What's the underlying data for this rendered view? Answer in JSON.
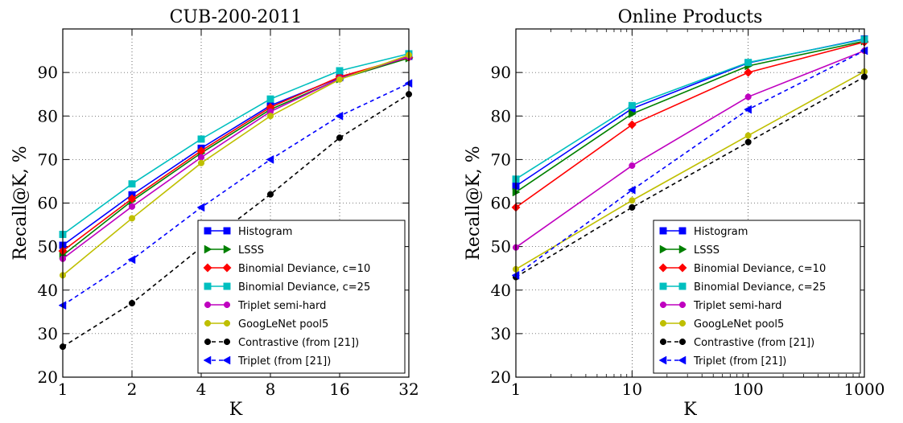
{
  "chart_data": [
    {
      "type": "line",
      "title": "CUB-200-2011",
      "xlabel": "K",
      "ylabel": "Recall@K, %",
      "x_scale": "log2",
      "xlim": [
        1,
        32
      ],
      "ylim": [
        20,
        100
      ],
      "x": [
        1,
        2,
        4,
        8,
        16,
        32
      ],
      "x_tick_labels": [
        "1",
        "2",
        "4",
        "8",
        "16",
        "32"
      ],
      "y_ticks": [
        20,
        30,
        40,
        50,
        60,
        70,
        80,
        90
      ],
      "y_tick_labels": [
        "20",
        "30",
        "40",
        "50",
        "60",
        "70",
        "80",
        "90"
      ],
      "grid": true,
      "legend_position": "lower-right",
      "series": [
        {
          "name": "Histogram",
          "values": [
            50.3,
            61.9,
            72.6,
            82.4,
            88.8,
            93.7
          ],
          "color": "#0000ff",
          "marker": "square",
          "dash": "solid"
        },
        {
          "name": "LSSS",
          "values": [
            48.0,
            60.5,
            71.5,
            81.5,
            88.5,
            93.3
          ],
          "color": "#008000",
          "marker": "arrow-right",
          "dash": "solid"
        },
        {
          "name": "Binomial Deviance, c=10",
          "values": [
            49.0,
            61.0,
            72.0,
            82.0,
            89.0,
            93.5
          ],
          "color": "#ff0000",
          "marker": "diamond",
          "dash": "solid"
        },
        {
          "name": "Binomial Deviance, c=25",
          "values": [
            52.8,
            64.4,
            74.7,
            83.9,
            90.4,
            94.3
          ],
          "color": "#00bfbf",
          "marker": "square",
          "dash": "solid"
        },
        {
          "name": "Triplet semi-hard",
          "values": [
            47.2,
            59.2,
            70.5,
            81.0,
            88.6,
            93.6
          ],
          "color": "#bf00bf",
          "marker": "circle",
          "dash": "solid"
        },
        {
          "name": "GoogLeNet pool5",
          "values": [
            43.4,
            56.5,
            69.2,
            80.0,
            88.4,
            94.0
          ],
          "color": "#bfbf00",
          "marker": "circle",
          "dash": "solid"
        },
        {
          "name": "Contrastive (from [21])",
          "values": [
            27.0,
            37.0,
            49.8,
            62.0,
            75.0,
            85.0
          ],
          "color": "#000000",
          "marker": "circle",
          "dash": "dashed"
        },
        {
          "name": "Triplet (from [21])",
          "values": [
            36.5,
            47.0,
            59.0,
            70.0,
            80.0,
            87.5
          ],
          "color": "#0000ff",
          "marker": "arrow-left",
          "dash": "dashed"
        }
      ]
    },
    {
      "type": "line",
      "title": "Online Products",
      "xlabel": "K",
      "ylabel": "Recall@K, %",
      "x_scale": "log10",
      "xlim": [
        1,
        1000
      ],
      "ylim": [
        20,
        100
      ],
      "x": [
        1,
        10,
        100,
        1000
      ],
      "x_tick_labels": [
        "1",
        "10",
        "100",
        "1000"
      ],
      "y_ticks": [
        20,
        30,
        40,
        50,
        60,
        70,
        80,
        90
      ],
      "y_tick_labels": [
        "20",
        "30",
        "40",
        "50",
        "60",
        "70",
        "80",
        "90"
      ],
      "grid": true,
      "legend_position": "lower-right",
      "series": [
        {
          "name": "Histogram",
          "values": [
            63.9,
            81.7,
            92.2,
            97.7
          ],
          "color": "#0000ff",
          "marker": "square",
          "dash": "solid"
        },
        {
          "name": "LSSS",
          "values": [
            62.5,
            80.5,
            91.5,
            97.2
          ],
          "color": "#008000",
          "marker": "arrow-right",
          "dash": "solid"
        },
        {
          "name": "Binomial Deviance, c=10",
          "values": [
            59.0,
            78.0,
            90.0,
            97.0
          ],
          "color": "#ff0000",
          "marker": "diamond",
          "dash": "solid"
        },
        {
          "name": "Binomial Deviance, c=25",
          "values": [
            65.5,
            82.4,
            92.3,
            97.6
          ],
          "color": "#00bfbf",
          "marker": "square",
          "dash": "solid"
        },
        {
          "name": "Triplet semi-hard",
          "values": [
            49.8,
            68.6,
            84.4,
            95.0
          ],
          "color": "#bf00bf",
          "marker": "circle",
          "dash": "solid"
        },
        {
          "name": "GoogLeNet pool5",
          "values": [
            44.8,
            60.6,
            75.5,
            90.2
          ],
          "color": "#bfbf00",
          "marker": "circle",
          "dash": "solid"
        },
        {
          "name": "Contrastive (from [21])",
          "values": [
            43.0,
            59.0,
            74.0,
            89.0
          ],
          "color": "#000000",
          "marker": "circle",
          "dash": "dashed"
        },
        {
          "name": "Triplet (from [21])",
          "values": [
            43.4,
            63.0,
            81.5,
            95.0
          ],
          "color": "#0000ff",
          "marker": "arrow-left",
          "dash": "dashed"
        }
      ]
    }
  ]
}
